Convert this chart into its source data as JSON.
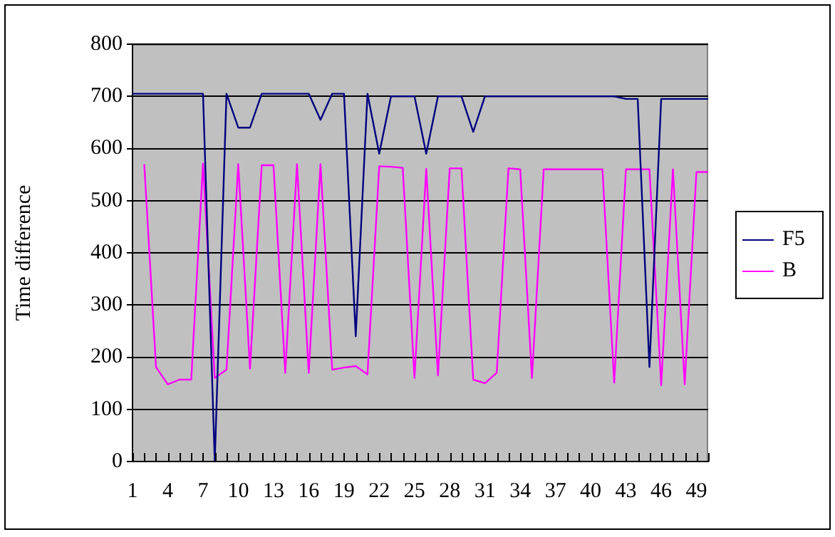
{
  "chart_data": {
    "type": "line",
    "ylabel": "Time difference",
    "categories": [
      "1",
      null,
      null,
      "4",
      null,
      null,
      "7",
      null,
      null,
      "10",
      null,
      null,
      "13",
      null,
      null,
      "16",
      null,
      null,
      "19",
      null,
      null,
      "22",
      null,
      null,
      "25",
      null,
      null,
      "28",
      null,
      null,
      "31",
      null,
      null,
      "34",
      null,
      null,
      "37",
      null,
      null,
      "40",
      null,
      null,
      "43",
      null,
      null,
      "46",
      null,
      null,
      "49",
      null
    ],
    "series": [
      {
        "name": "F5",
        "color": "#000080",
        "values": [
          705,
          705,
          705,
          705,
          705,
          705,
          705,
          0,
          705,
          640,
          640,
          705,
          705,
          705,
          705,
          705,
          655,
          705,
          705,
          240,
          705,
          590,
          700,
          700,
          700,
          590,
          700,
          700,
          700,
          632,
          700,
          700,
          700,
          700,
          700,
          700,
          700,
          700,
          700,
          700,
          700,
          700,
          695,
          695,
          181,
          695,
          695,
          695,
          695,
          695
        ]
      },
      {
        "name": "B",
        "color": "#ff00ff",
        "values": [
          null,
          570,
          181,
          148,
          157,
          157,
          571,
          160,
          176,
          570,
          178,
          568,
          568,
          170,
          570,
          170,
          570,
          176,
          180,
          183,
          167,
          566,
          565,
          563,
          160,
          561,
          165,
          562,
          562,
          157,
          150,
          170,
          562,
          560,
          160,
          560,
          560,
          560,
          560,
          560,
          560,
          151,
          560,
          560,
          560,
          146,
          560,
          148,
          555,
          555
        ]
      }
    ],
    "ylim": [
      0,
      800
    ],
    "yticks": [
      0,
      100,
      200,
      300,
      400,
      500,
      600,
      700,
      800
    ],
    "grid": "y",
    "legend": "right",
    "marker": "none",
    "line_style": "solid"
  }
}
